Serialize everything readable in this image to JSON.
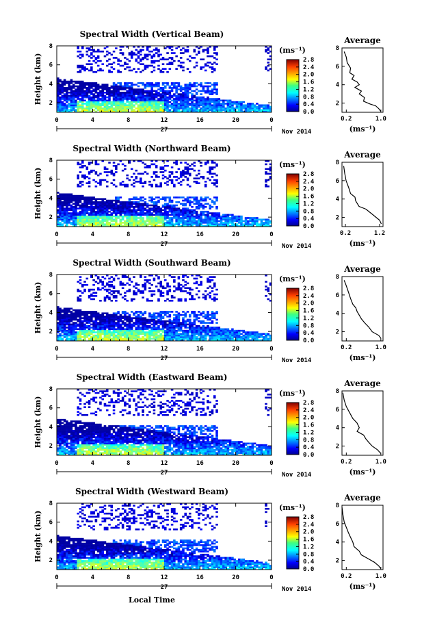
{
  "chart_data": [
    {
      "type": "heatmap",
      "title": "Spectral Width (Vertical Beam)",
      "ylabel": "Height (km)",
      "x_ticks": [
        "0",
        "4",
        "8",
        "12",
        "16",
        "20",
        "0"
      ],
      "day_label": "27",
      "month_label": "Nov 2014",
      "xlim": [
        0,
        24
      ],
      "ylim": [
        1,
        8
      ],
      "y_ticks": [
        "2",
        "4",
        "6",
        "8"
      ],
      "colorbar": {
        "unit": "(ms⁻¹)",
        "ticks": [
          "0.0",
          "0.4",
          "0.8",
          "1.2",
          "1.6",
          "2.0",
          "2.4",
          "2.8"
        ],
        "range": [
          0,
          2.8
        ]
      },
      "profile": {
        "title": "Average",
        "xlabel": "(ms⁻¹)",
        "x_ticks": [
          "0.2",
          "1.0"
        ],
        "xlim": [
          0.1,
          1.05
        ],
        "y_ticks": [
          "2",
          "4",
          "6",
          "8"
        ],
        "points": [
          [
            0.15,
            7.6
          ],
          [
            0.2,
            7.0
          ],
          [
            0.22,
            6.4
          ],
          [
            0.3,
            5.8
          ],
          [
            0.28,
            5.3
          ],
          [
            0.38,
            5.0
          ],
          [
            0.33,
            4.6
          ],
          [
            0.45,
            4.3
          ],
          [
            0.5,
            4.0
          ],
          [
            0.4,
            3.7
          ],
          [
            0.55,
            3.3
          ],
          [
            0.5,
            3.0
          ],
          [
            0.62,
            2.6
          ],
          [
            0.6,
            2.2
          ],
          [
            0.75,
            1.9
          ],
          [
            0.88,
            1.7
          ],
          [
            0.95,
            1.4
          ],
          [
            1.0,
            1.1
          ]
        ]
      }
    },
    {
      "type": "heatmap",
      "title": "Spectral Width (Northward Beam)",
      "ylabel": "Height (km)",
      "x_ticks": [
        "0",
        "4",
        "8",
        "12",
        "16",
        "20",
        "0"
      ],
      "day_label": "27",
      "month_label": "Nov 2014",
      "xlim": [
        0,
        24
      ],
      "ylim": [
        1,
        8
      ],
      "y_ticks": [
        "2",
        "4",
        "6",
        "8"
      ],
      "colorbar": {
        "unit": "(ms⁻¹)",
        "ticks": [
          "0.0",
          "0.4",
          "0.8",
          "1.2",
          "1.6",
          "2.0",
          "2.4",
          "2.8"
        ],
        "range": [
          0,
          2.8
        ]
      },
      "profile": {
        "title": "Average",
        "xlabel": "(ms⁻¹)",
        "x_ticks": [
          "0.2",
          "1.2"
        ],
        "xlim": [
          0.1,
          1.3
        ],
        "y_ticks": [
          "2",
          "4",
          "6",
          "8"
        ],
        "points": [
          [
            0.15,
            7.6
          ],
          [
            0.18,
            6.8
          ],
          [
            0.22,
            6.0
          ],
          [
            0.3,
            5.2
          ],
          [
            0.35,
            4.6
          ],
          [
            0.48,
            4.2
          ],
          [
            0.5,
            3.8
          ],
          [
            0.55,
            3.5
          ],
          [
            0.6,
            3.2
          ],
          [
            0.8,
            2.9
          ],
          [
            0.9,
            2.6
          ],
          [
            1.0,
            2.3
          ],
          [
            1.1,
            2.0
          ],
          [
            1.2,
            1.7
          ],
          [
            1.25,
            1.3
          ]
        ]
      }
    },
    {
      "type": "heatmap",
      "title": "Spectral Width (Southward Beam)",
      "ylabel": "Height (km)",
      "x_ticks": [
        "0",
        "4",
        "8",
        "12",
        "16",
        "20",
        "0"
      ],
      "day_label": "27",
      "month_label": "Nov 2014",
      "xlim": [
        0,
        24
      ],
      "ylim": [
        1,
        8
      ],
      "y_ticks": [
        "2",
        "4",
        "6",
        "8"
      ],
      "colorbar": {
        "unit": "(ms⁻¹)",
        "ticks": [
          "0.0",
          "0.4",
          "0.8",
          "1.2",
          "1.6",
          "2.0",
          "2.4",
          "2.8"
        ],
        "range": [
          0,
          2.8
        ]
      },
      "profile": {
        "title": "Average",
        "xlabel": "(ms⁻¹)",
        "x_ticks": [
          "0.2",
          "1.0"
        ],
        "xlim": [
          0.1,
          1.05
        ],
        "y_ticks": [
          "2",
          "4",
          "6",
          "8"
        ],
        "points": [
          [
            0.15,
            7.6
          ],
          [
            0.2,
            7.0
          ],
          [
            0.25,
            6.3
          ],
          [
            0.3,
            5.6
          ],
          [
            0.35,
            5.0
          ],
          [
            0.42,
            4.6
          ],
          [
            0.45,
            4.2
          ],
          [
            0.5,
            3.8
          ],
          [
            0.55,
            3.4
          ],
          [
            0.62,
            3.0
          ],
          [
            0.72,
            2.5
          ],
          [
            0.8,
            2.0
          ],
          [
            0.95,
            1.6
          ],
          [
            1.0,
            1.3
          ]
        ]
      }
    },
    {
      "type": "heatmap",
      "title": "Spectral Width (Eastward Beam)",
      "ylabel": "Height (km)",
      "x_ticks": [
        "0",
        "4",
        "8",
        "12",
        "16",
        "20",
        "0"
      ],
      "day_label": "27",
      "month_label": "Nov 2014",
      "xlim": [
        0,
        24
      ],
      "ylim": [
        1,
        8
      ],
      "y_ticks": [
        "2",
        "4",
        "6",
        "8"
      ],
      "colorbar": {
        "unit": "(ms⁻¹)",
        "ticks": [
          "0.0",
          "0.4",
          "0.8",
          "1.2",
          "1.6",
          "2.0",
          "2.4",
          "2.8"
        ],
        "range": [
          0,
          2.8
        ]
      },
      "profile": {
        "title": "Average",
        "xlabel": "(ms⁻¹)",
        "x_ticks": [
          "0.2",
          "1.0"
        ],
        "xlim": [
          0.1,
          1.05
        ],
        "y_ticks": [
          "2",
          "4",
          "6",
          "8"
        ],
        "points": [
          [
            0.12,
            7.8
          ],
          [
            0.15,
            7.0
          ],
          [
            0.2,
            6.3
          ],
          [
            0.28,
            5.6
          ],
          [
            0.35,
            5.0
          ],
          [
            0.45,
            4.5
          ],
          [
            0.5,
            4.0
          ],
          [
            0.45,
            3.6
          ],
          [
            0.6,
            3.2
          ],
          [
            0.65,
            2.8
          ],
          [
            0.72,
            2.4
          ],
          [
            0.8,
            2.0
          ],
          [
            0.92,
            1.6
          ],
          [
            1.0,
            1.2
          ]
        ]
      }
    },
    {
      "type": "heatmap",
      "title": "Spectral Width (Westward Beam)",
      "ylabel": "Height (km)",
      "x_ticks": [
        "0",
        "4",
        "8",
        "12",
        "16",
        "20",
        "0"
      ],
      "day_label": "27",
      "month_label": "Nov 2014",
      "xlim": [
        0,
        24
      ],
      "ylim": [
        1,
        8
      ],
      "y_ticks": [
        "2",
        "4",
        "6",
        "8"
      ],
      "colorbar": {
        "unit": "(ms⁻¹)",
        "ticks": [
          "0.0",
          "0.4",
          "0.8",
          "1.2",
          "1.6",
          "2.0",
          "2.4",
          "2.8"
        ],
        "range": [
          0,
          2.8
        ]
      },
      "profile": {
        "title": "Average",
        "xlabel": "(ms⁻¹)",
        "x_ticks": [
          "0.2",
          "1.0"
        ],
        "xlim": [
          0.1,
          1.05
        ],
        "y_ticks": [
          "2",
          "4",
          "6",
          "8"
        ],
        "points": [
          [
            0.1,
            7.8
          ],
          [
            0.12,
            7.0
          ],
          [
            0.15,
            6.2
          ],
          [
            0.2,
            5.6
          ],
          [
            0.25,
            5.0
          ],
          [
            0.3,
            4.5
          ],
          [
            0.35,
            4.0
          ],
          [
            0.38,
            3.5
          ],
          [
            0.5,
            3.0
          ],
          [
            0.55,
            2.6
          ],
          [
            0.7,
            2.2
          ],
          [
            0.85,
            1.8
          ],
          [
            0.95,
            1.4
          ],
          [
            1.0,
            1.1
          ]
        ]
      }
    }
  ],
  "footer": {
    "xlabel": "Local Time"
  }
}
